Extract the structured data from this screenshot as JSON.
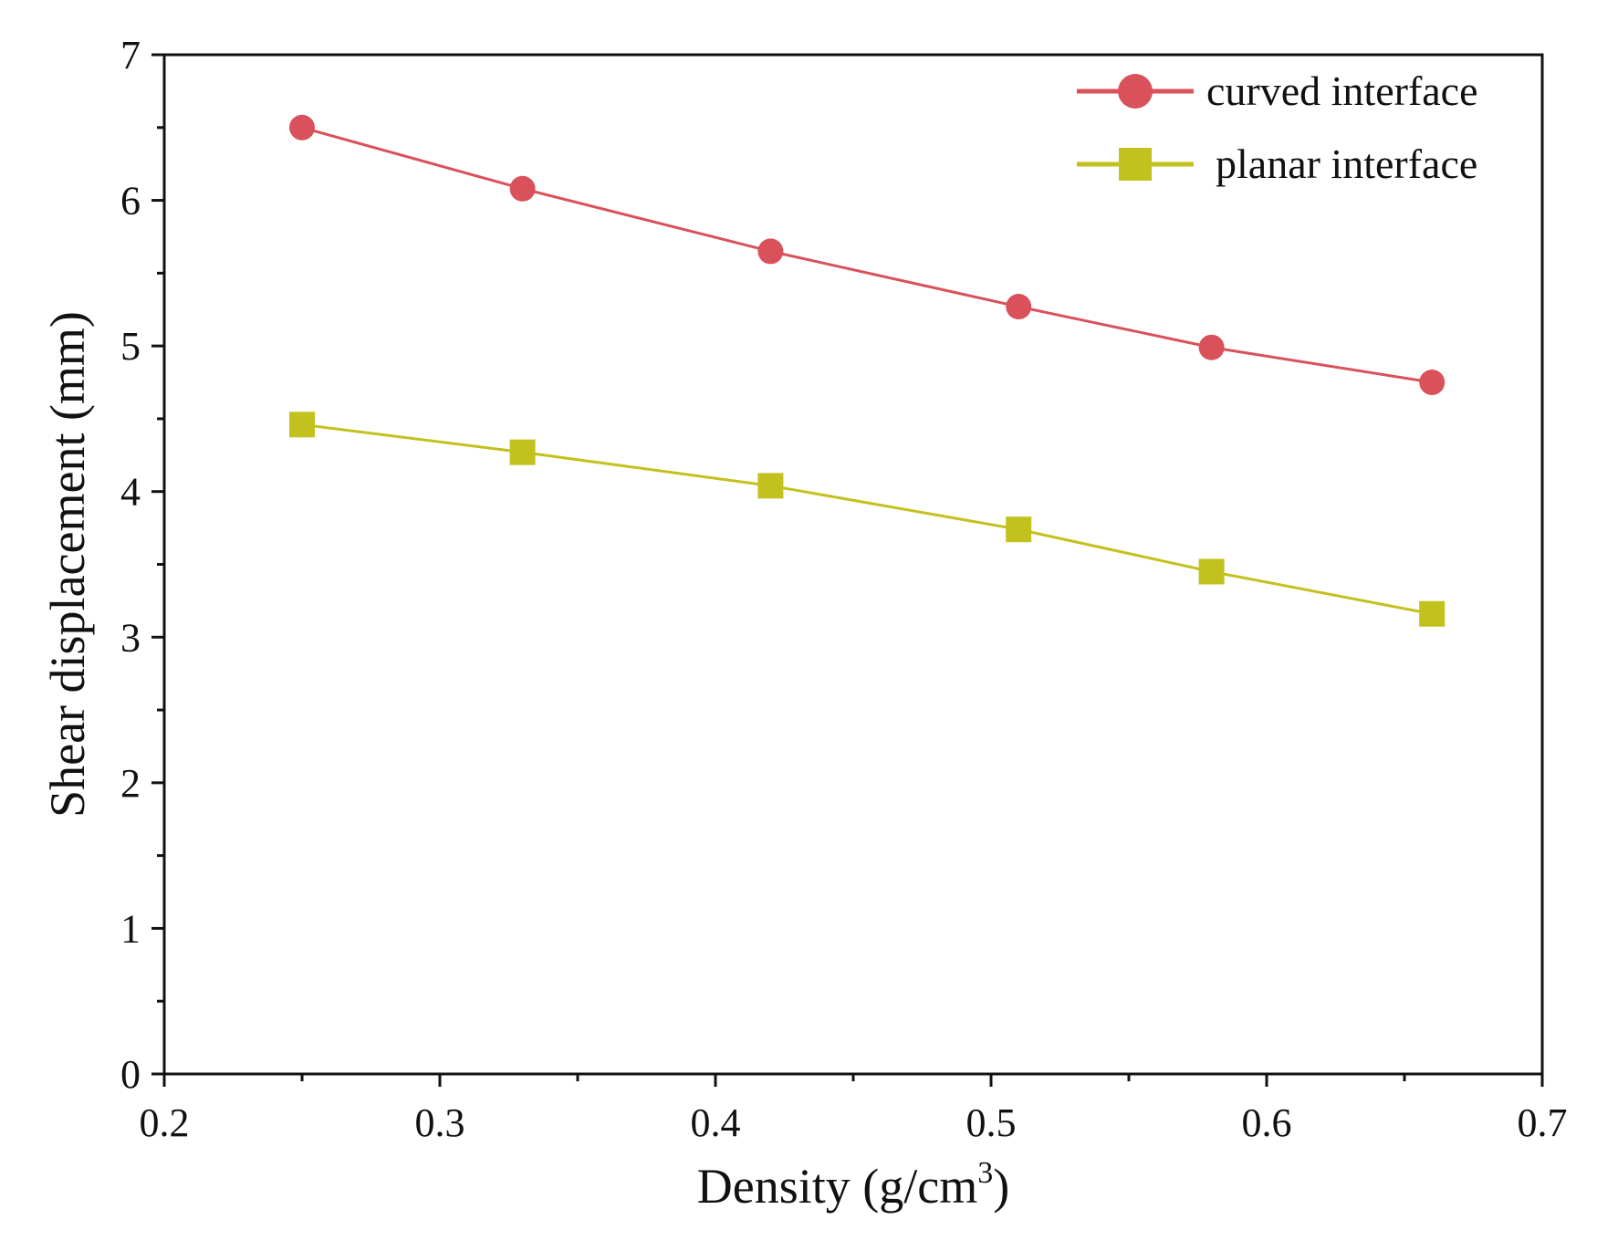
{
  "chart_data": {
    "type": "line",
    "title": "",
    "xlabel": "Density (g/cm",
    "xlabel_superscript": "3",
    "xlabel_suffix": ")",
    "ylabel": "Shear displacement (mm)",
    "xlim": [
      0.2,
      0.7
    ],
    "ylim": [
      0,
      7
    ],
    "x_ticks": [
      0.2,
      0.3,
      0.4,
      0.5,
      0.6,
      0.7
    ],
    "x_tick_labels": [
      "0.2",
      "0.3",
      "0.4",
      "0.5",
      "0.6",
      "0.7"
    ],
    "y_ticks": [
      0,
      1,
      2,
      3,
      4,
      5,
      6,
      7
    ],
    "y_tick_labels": [
      "0",
      "1",
      "2",
      "3",
      "4",
      "5",
      "6",
      "7"
    ],
    "grid": false,
    "legend_position": "top-right",
    "x": [
      0.25,
      0.33,
      0.42,
      0.51,
      0.58,
      0.66
    ],
    "series": [
      {
        "name": "curved interface",
        "marker": "circle",
        "color": "#d9515a",
        "values": [
          6.5,
          6.08,
          5.65,
          5.27,
          4.99,
          4.75
        ]
      },
      {
        "name": "planar interface",
        "marker": "square",
        "color": "#c2c11d",
        "values": [
          4.46,
          4.27,
          4.04,
          3.74,
          3.45,
          3.16
        ]
      }
    ]
  }
}
